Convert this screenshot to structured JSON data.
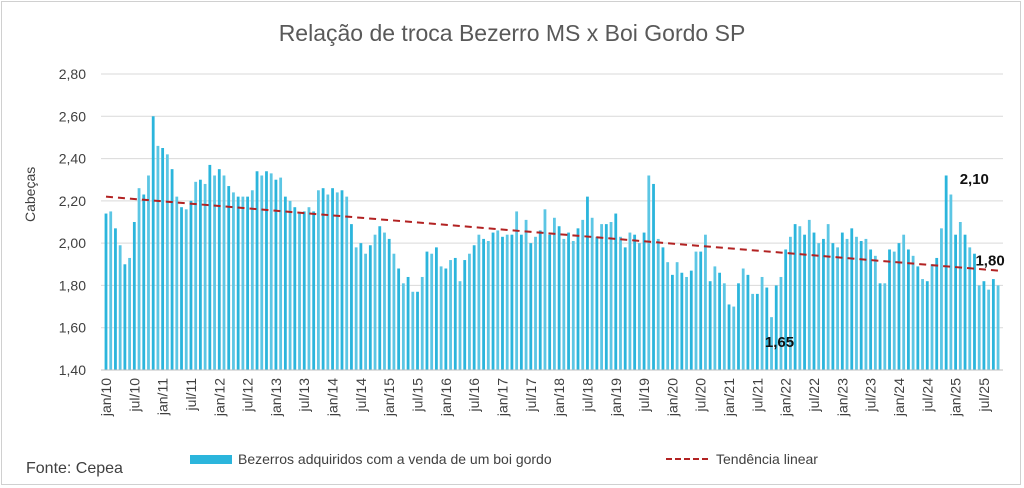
{
  "chart_data": {
    "type": "bar",
    "title": "Relação de troca Bezerro MS x Boi Gordo SP",
    "xlabel": "",
    "ylabel": "Cabeças",
    "ylim": [
      1.4,
      2.8
    ],
    "yticks": [
      "1,40",
      "1,60",
      "1,80",
      "2,00",
      "2,20",
      "2,40",
      "2,60",
      "2,80"
    ],
    "grid": true,
    "legend_position": "bottom",
    "start": "jan/10",
    "xtick_labels": [
      "jan/10",
      "jul/10",
      "jan/11",
      "jul/11",
      "jan/12",
      "jul/12",
      "jan/13",
      "jul/13",
      "jan/14",
      "jul/14",
      "jan/15",
      "jul/15",
      "jan/16",
      "jul/16",
      "jan/17",
      "jul/17",
      "jan/18",
      "jul/18",
      "jan/19",
      "jul/19",
      "jan/20",
      "jul/20",
      "jan/21",
      "jul/21",
      "jan/22",
      "jul/22",
      "jan/23",
      "jul/23",
      "jan/24",
      "jul/24",
      "jan/25",
      "jul/25"
    ],
    "series": [
      {
        "name": "Bezerros adquiridos com a venda de um boi gordo",
        "color": "#2bb5dc",
        "values": [
          2.14,
          2.15,
          2.07,
          1.99,
          1.9,
          1.93,
          2.1,
          2.26,
          2.23,
          2.32,
          2.6,
          2.46,
          2.45,
          2.42,
          2.35,
          2.22,
          2.17,
          2.16,
          2.2,
          2.29,
          2.3,
          2.28,
          2.37,
          2.32,
          2.35,
          2.32,
          2.27,
          2.24,
          2.22,
          2.22,
          2.22,
          2.25,
          2.34,
          2.32,
          2.34,
          2.33,
          2.3,
          2.31,
          2.22,
          2.2,
          2.17,
          2.14,
          2.15,
          2.17,
          2.15,
          2.25,
          2.26,
          2.23,
          2.26,
          2.24,
          2.25,
          2.22,
          2.09,
          1.98,
          2.0,
          1.95,
          1.99,
          2.04,
          2.08,
          2.05,
          2.02,
          1.95,
          1.88,
          1.81,
          1.84,
          1.77,
          1.77,
          1.84,
          1.96,
          1.95,
          1.98,
          1.89,
          1.88,
          1.92,
          1.93,
          1.82,
          1.92,
          1.95,
          1.99,
          2.04,
          2.02,
          2.01,
          2.05,
          2.06,
          2.03,
          2.04,
          2.04,
          2.15,
          2.04,
          2.11,
          2.0,
          2.03,
          2.06,
          2.16,
          2.04,
          2.12,
          2.08,
          2.02,
          2.05,
          2.01,
          2.07,
          2.11,
          2.22,
          2.12,
          2.03,
          2.09,
          2.09,
          2.1,
          2.14,
          2.03,
          1.98,
          2.05,
          2.04,
          2.0,
          2.05,
          2.32,
          2.28,
          2.02,
          1.98,
          1.91,
          1.85,
          1.91,
          1.86,
          1.84,
          1.87,
          1.96,
          1.96,
          2.04,
          1.82,
          1.89,
          1.86,
          1.81,
          1.71,
          1.7,
          1.81,
          1.88,
          1.85,
          1.76,
          1.76,
          1.84,
          1.79,
          1.65,
          1.8,
          1.84,
          1.97,
          2.03,
          2.09,
          2.08,
          2.04,
          2.11,
          2.05,
          2.0,
          2.02,
          2.09,
          2.0,
          1.98,
          2.05,
          2.02,
          2.07,
          2.03,
          2.01,
          2.02,
          1.97,
          1.94,
          1.81,
          1.81,
          1.97,
          1.96,
          2.0,
          2.04,
          1.97,
          1.94,
          1.89,
          1.83,
          1.82,
          1.9,
          1.93,
          2.07,
          2.32,
          2.23,
          2.04,
          2.1,
          2.04,
          1.98,
          1.95,
          1.8,
          1.82,
          1.78,
          1.83,
          1.8
        ]
      },
      {
        "name": "Tendência linear",
        "type": "line",
        "style": "dashed",
        "color": "#b22222",
        "values": [
          2.22,
          1.87
        ]
      }
    ],
    "annotations": [
      {
        "label": "1,65",
        "index": 141
      },
      {
        "label": "2,10",
        "index": 181
      },
      {
        "label": "1,80",
        "index": 189
      }
    ]
  },
  "source": "Fonte: Cepea"
}
